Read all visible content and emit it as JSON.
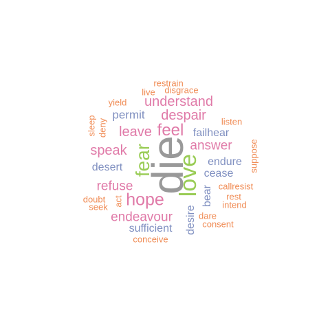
{
  "palette": {
    "grey": "#999999",
    "green": "#99cc55",
    "pink": "#e07aa8",
    "blue": "#7f8fc0",
    "orange": "#f08c55"
  },
  "words": [
    {
      "text": "die",
      "color": "grey"
    },
    {
      "text": "love",
      "color": "green"
    },
    {
      "text": "fear",
      "color": "green"
    },
    {
      "text": "feel",
      "color": "pink"
    },
    {
      "text": "hope",
      "color": "pink"
    },
    {
      "text": "despair",
      "color": "pink"
    },
    {
      "text": "understand",
      "color": "pink"
    },
    {
      "text": "leave",
      "color": "pink"
    },
    {
      "text": "answer",
      "color": "pink"
    },
    {
      "text": "speak",
      "color": "pink"
    },
    {
      "text": "refuse",
      "color": "pink"
    },
    {
      "text": "endeavour",
      "color": "pink"
    },
    {
      "text": "failhear",
      "color": "blue"
    },
    {
      "text": "permit",
      "color": "blue"
    },
    {
      "text": "desert",
      "color": "blue"
    },
    {
      "text": "endure",
      "color": "blue"
    },
    {
      "text": "cease",
      "color": "blue"
    },
    {
      "text": "bear",
      "color": "blue"
    },
    {
      "text": "desire",
      "color": "blue"
    },
    {
      "text": "sufficient",
      "color": "blue"
    },
    {
      "text": "restrain",
      "color": "orange"
    },
    {
      "text": "live",
      "color": "orange"
    },
    {
      "text": "disgrace",
      "color": "orange"
    },
    {
      "text": "yield",
      "color": "orange"
    },
    {
      "text": "listen",
      "color": "orange"
    },
    {
      "text": "sleep",
      "color": "orange"
    },
    {
      "text": "deny",
      "color": "orange"
    },
    {
      "text": "suppose",
      "color": "orange"
    },
    {
      "text": "callresist",
      "color": "orange"
    },
    {
      "text": "rest",
      "color": "orange"
    },
    {
      "text": "intend",
      "color": "orange"
    },
    {
      "text": "doubt",
      "color": "orange"
    },
    {
      "text": "seek",
      "color": "orange"
    },
    {
      "text": "act",
      "color": "orange"
    },
    {
      "text": "dare",
      "color": "orange"
    },
    {
      "text": "consent",
      "color": "orange"
    },
    {
      "text": "conceive",
      "color": "orange"
    }
  ]
}
